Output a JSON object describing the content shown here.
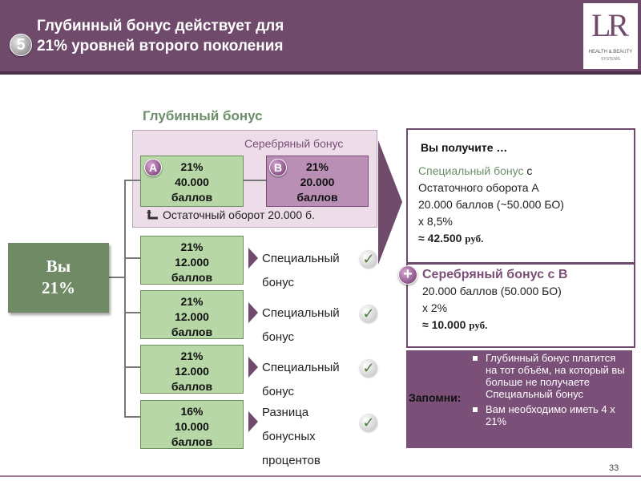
{
  "header": {
    "step_number": "5",
    "title_line1": "Глубинный бонус действует для",
    "title_line2": "21% уровней второго поколения",
    "logo": {
      "letters": "LR",
      "tagline": "HEALTH & BEAUTY",
      "subline": "SYSTEMS"
    }
  },
  "diagram": {
    "section_title": "Глубинный бонус",
    "silver_bonus_label": "Серебряный бонус",
    "you_box": {
      "line1": "Вы",
      "line2": "21%"
    },
    "box_a": {
      "badge": "A",
      "line1": "21%",
      "line2": "40.000",
      "line3": "баллов"
    },
    "box_b": {
      "badge": "B",
      "line1": "21%",
      "line2": "20.000",
      "line3": "баллов"
    },
    "residual_text": "Остаточный оборот 20.000 б.",
    "rows": [
      {
        "line1": "21%",
        "line2": "12.000",
        "line3": "баллов",
        "label1": "Специальный",
        "label2": "бонус",
        "label3": ""
      },
      {
        "line1": "21%",
        "line2": "12.000",
        "line3": "баллов",
        "label1": "Специальный",
        "label2": "бонус",
        "label3": ""
      },
      {
        "line1": "21%",
        "line2": "12.000",
        "line3": "баллов",
        "label1": "Специальный",
        "label2": "бонус",
        "label3": ""
      },
      {
        "line1": "16%",
        "line2": "10.000",
        "line3": "баллов",
        "label1": "Разница",
        "label2": "бонусных",
        "label3": "процентов"
      }
    ]
  },
  "result_panel": {
    "title": "Вы получите …",
    "special_title": "Специальный бонус",
    "special_title_suffix": " с",
    "special_line2": "Остаточного оборота А",
    "special_line3": "20.000 баллов (~50.000 БО)",
    "special_line4": "х 8,5%",
    "special_total": "≈ 42.500",
    "currency": "руб.",
    "plus_badge": "+",
    "silver_title": "Серебряный бонус с В",
    "silver_line2": "20.000 баллов (50.000 БО)",
    "silver_line3": "х 2%",
    "silver_total": "≈ 10.000"
  },
  "remember": {
    "label": "Запомни:",
    "items": [
      "Глубинный бонус платится на тот объём, на который вы больше не получаете Специальный бонус",
      "Вам необходимо иметь 4 х 21%"
    ]
  },
  "footer": {
    "page_number": "33"
  },
  "colors": {
    "header": "#6f4a6b",
    "green_box": "#b7d7a7",
    "purple_box": "#b98fb5",
    "you_box": "#6f8a64",
    "accent_green": "#6b8f6a"
  }
}
